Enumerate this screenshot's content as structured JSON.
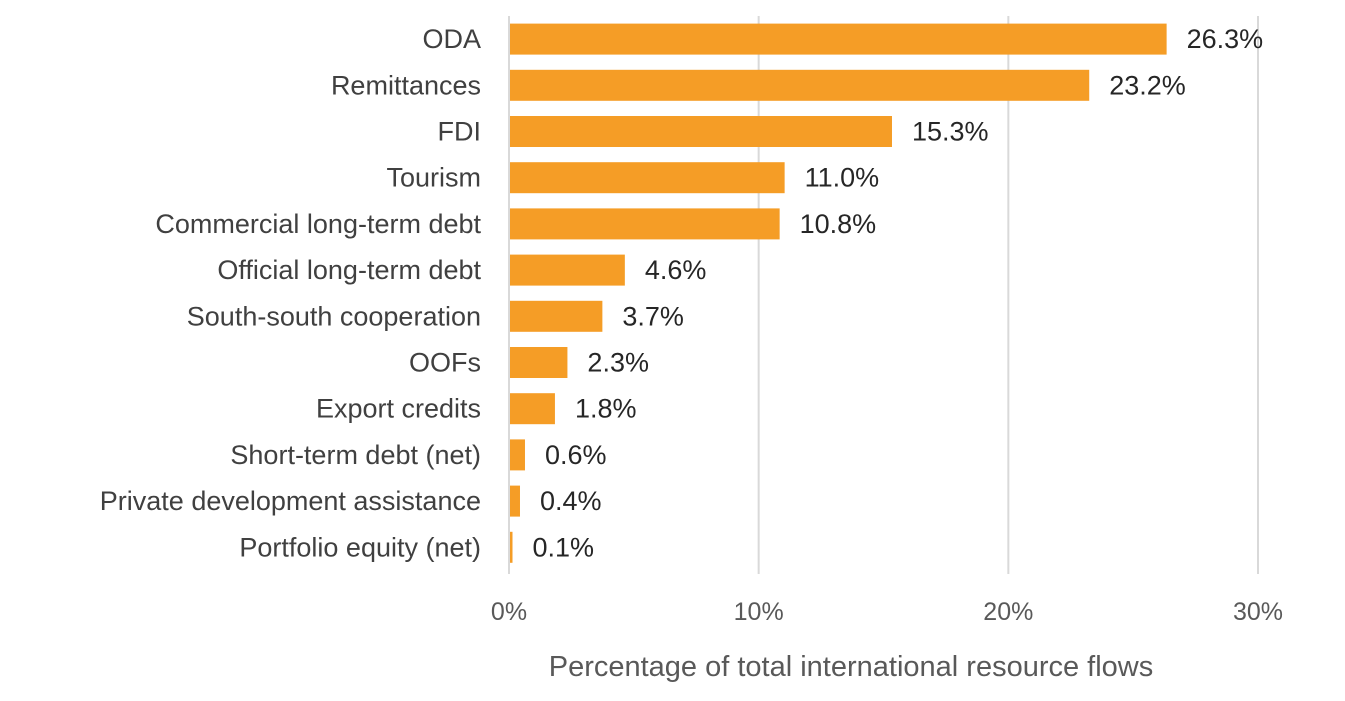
{
  "chart_data": {
    "type": "bar",
    "orientation": "horizontal",
    "title": "",
    "xlabel": "Percentage of total international resource flows",
    "ylabel": "",
    "categories": [
      "ODA",
      "Remittances",
      "FDI",
      "Tourism",
      "Commercial long-term debt",
      "Official long-term debt",
      "South-south cooperation",
      "OOFs",
      "Export credits",
      "Short-term debt (net)",
      "Private development assistance",
      "Portfolio equity (net)"
    ],
    "values": [
      26.3,
      23.2,
      15.3,
      11.0,
      10.8,
      4.6,
      3.7,
      2.3,
      1.8,
      0.6,
      0.4,
      0.1
    ],
    "data_labels": [
      "26.3%",
      "23.2%",
      "15.3%",
      "11.0%",
      "10.8%",
      "4.6%",
      "3.7%",
      "2.3%",
      "1.8%",
      "0.6%",
      "0.4%",
      "0.1%"
    ],
    "xlim": [
      0,
      30
    ],
    "x_ticks": [
      0,
      10,
      20,
      30
    ],
    "x_tick_labels": [
      "0%",
      "10%",
      "20%",
      "30%"
    ],
    "grid": "vertical",
    "legend": "none",
    "bar_color": "#F59D26",
    "grid_color": "#D9D9D9"
  }
}
